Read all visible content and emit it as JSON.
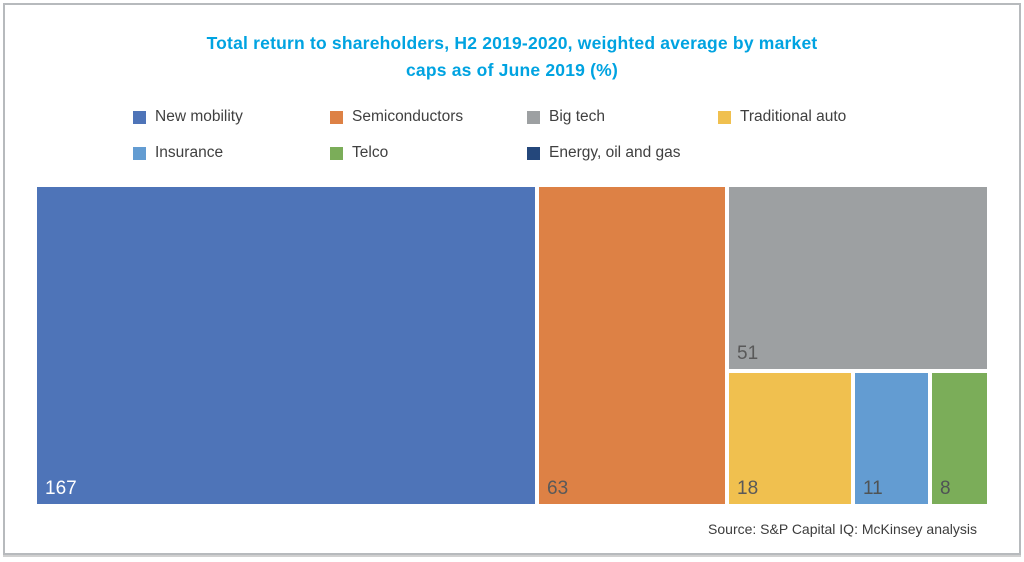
{
  "title": {
    "lines": [
      "Total return to shareholders, H2 2019-2020, weighted average by market",
      "caps as of June 2019 (%)"
    ],
    "color": "#00a3e1"
  },
  "legend": {
    "items": [
      {
        "label": "New mobility",
        "color": "#4e74b8"
      },
      {
        "label": "Semiconductors",
        "color": "#dd8145"
      },
      {
        "label": "Big tech",
        "color": "#9da0a2"
      },
      {
        "label": "Traditional auto",
        "color": "#f0c04f"
      },
      {
        "label": "Insurance",
        "color": "#639cd2"
      },
      {
        "label": "Telco",
        "color": "#7bad59"
      },
      {
        "label": "Energy, oil and gas",
        "color": "#24477b"
      }
    ]
  },
  "chart_data": {
    "type": "treemap",
    "title": "Total return to shareholders, H2 2019-2020, weighted average by market caps as of June 2019 (%)",
    "unit": "%",
    "legend_position": "top",
    "categories": [
      "New mobility",
      "Semiconductors",
      "Big tech",
      "Traditional auto",
      "Insurance",
      "Telco",
      "Energy, oil and gas"
    ],
    "values": [
      167,
      63,
      51,
      18,
      11,
      8,
      null
    ],
    "series": [
      {
        "name": "New mobility",
        "value": 167,
        "color": "#4e74b8",
        "label_color": "#ffffff"
      },
      {
        "name": "Semiconductors",
        "value": 63,
        "color": "#dd8145",
        "label_color": "#595959"
      },
      {
        "name": "Big tech",
        "value": 51,
        "color": "#9da0a2",
        "label_color": "#595959"
      },
      {
        "name": "Traditional auto",
        "value": 18,
        "color": "#f0c04f",
        "label_color": "#595959"
      },
      {
        "name": "Insurance",
        "value": 11,
        "color": "#639cd2",
        "label_color": "#4f5355"
      },
      {
        "name": "Telco",
        "value": 8,
        "color": "#7bad59",
        "label_color": "#4f5355"
      }
    ]
  },
  "source": "Source: S&P Capital IQ: McKinsey analysis"
}
